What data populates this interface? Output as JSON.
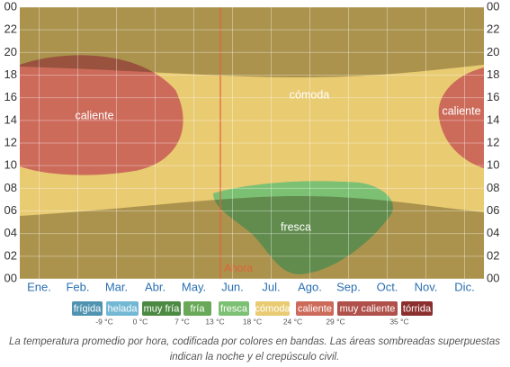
{
  "chart_data": {
    "type": "band-map",
    "categories": [
      "Ene.",
      "Feb.",
      "Mar.",
      "Abr.",
      "May.",
      "Jun.",
      "Jul.",
      "Ago.",
      "Sep.",
      "Oct.",
      "Nov.",
      "Dic."
    ],
    "ylim": [
      0,
      24
    ],
    "yticks": [
      {
        "value": 0,
        "label": "00"
      },
      {
        "value": 2,
        "label": "02"
      },
      {
        "value": 4,
        "label": "04"
      },
      {
        "value": 6,
        "label": "06"
      },
      {
        "value": 8,
        "label": "08"
      },
      10,
      12,
      14,
      16,
      18,
      20,
      22,
      {
        "value": 24,
        "label": "00"
      }
    ],
    "grid": true,
    "regions": [
      "caliente",
      "cómoda",
      "fresca",
      "caliente"
    ],
    "now_label": "Ahora",
    "legend": [
      {
        "name": "frígida",
        "color": "#4f93b0"
      },
      {
        "name": "helada",
        "color": "#72b8d4"
      },
      {
        "name": "muy fría",
        "color": "#4c8a44"
      },
      {
        "name": "fría",
        "color": "#68a858"
      },
      {
        "name": "fresca",
        "color": "#7cc073"
      },
      {
        "name": "cómoda",
        "color": "#e9cb72"
      },
      {
        "name": "caliente",
        "color": "#cd6b5b"
      },
      {
        "name": "muy caliente",
        "color": "#b0504a"
      },
      {
        "name": "tórrida",
        "color": "#8b2e2e"
      }
    ],
    "thresholds": [
      "-9 °C",
      "0 °C",
      "7 °C",
      "13 °C",
      "18 °C",
      "24 °C",
      "29 °C",
      "35 °C"
    ],
    "caption": [
      "La temperatura promedio por hora, codificada por colores en bandas. Las áreas sombreadas superpuestas",
      "indican la noche y el crepúsculo civil."
    ]
  }
}
